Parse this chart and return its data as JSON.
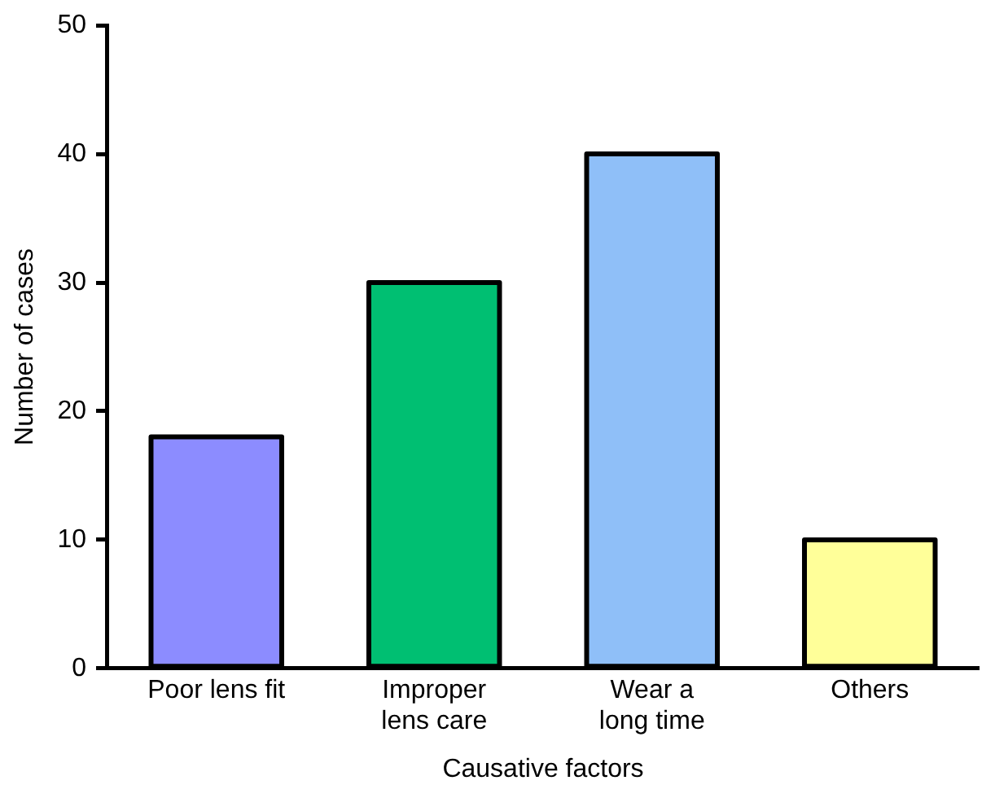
{
  "chart_data": {
    "type": "bar",
    "xlabel": "Causative factors",
    "ylabel": "Number of cases",
    "categories": [
      "Poor lens fit",
      "Improper lens care",
      "Wear a long time",
      "Others"
    ],
    "values": [
      18,
      30,
      40,
      10
    ],
    "colors": [
      "#8c8cff",
      "#00bf72",
      "#8fbff8",
      "#ffff99"
    ],
    "ylim": [
      0,
      50
    ],
    "yticks": [
      0,
      10,
      20,
      30,
      40,
      50
    ],
    "grid": false,
    "legend": false
  }
}
